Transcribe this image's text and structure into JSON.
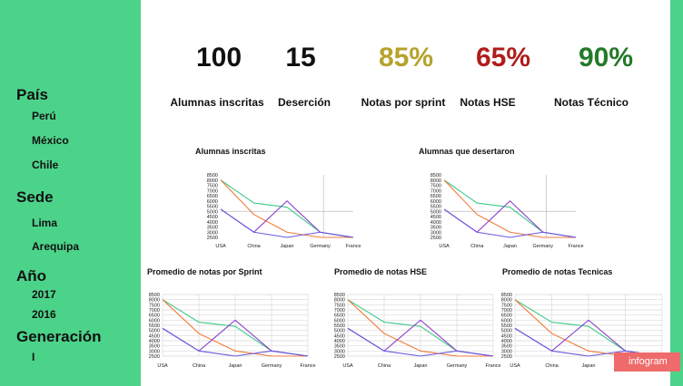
{
  "sidebar": {
    "sections": [
      {
        "title": "País",
        "items": [
          "Perú",
          "México",
          "Chile"
        ]
      },
      {
        "title": "Sede",
        "items": [
          "Lima",
          "Arequipa"
        ]
      },
      {
        "title": "Año",
        "items": [
          "2017",
          "2016"
        ]
      },
      {
        "title": "Generación",
        "items": [
          "I"
        ]
      }
    ]
  },
  "kpis": [
    {
      "value": "100",
      "label": "Alumnas inscritas",
      "color": "#111111"
    },
    {
      "value": "15",
      "label": "Deserción",
      "color": "#111111"
    },
    {
      "value": "85%",
      "label": "Notas por sprint",
      "color": "#b5a22a"
    },
    {
      "value": "65%",
      "label": "Notas HSE",
      "color": "#b01c1c"
    },
    {
      "value": "90%",
      "label": "Notas Técnico",
      "color": "#237a2a"
    }
  ],
  "badge": "infogram",
  "chart_data": [
    {
      "type": "line",
      "title": "Alumnas inscritas",
      "categories": [
        "USA",
        "China",
        "Japan",
        "Germany",
        "France"
      ],
      "yticks": [
        2500,
        3000,
        3500,
        4000,
        4500,
        5000,
        5500,
        6000,
        6500,
        7000,
        7500,
        8000,
        8500
      ],
      "ylim": [
        2500,
        8500
      ],
      "series": [
        {
          "values": [
            8000,
            5800,
            5400,
            3000,
            2500
          ],
          "color": "#3ec98a"
        },
        {
          "values": [
            8000,
            4700,
            3000,
            2500,
            2500
          ],
          "color": "#f07b39"
        },
        {
          "values": [
            5200,
            3000,
            6000,
            3000,
            2500
          ],
          "color": "#8b3fc8"
        },
        {
          "values": [
            5200,
            3000,
            2500,
            3000,
            2500
          ],
          "color": "#6a5ae0"
        }
      ]
    },
    {
      "type": "line",
      "title": "Alumnas que desertaron",
      "categories": [
        "USA",
        "China",
        "Japan",
        "Germany",
        "France"
      ],
      "yticks": [
        2500,
        3000,
        3500,
        4000,
        4500,
        5000,
        5500,
        6000,
        6500,
        7000,
        7500,
        8000,
        8500
      ],
      "ylim": [
        2500,
        8500
      ],
      "series": [
        {
          "values": [
            8000,
            5800,
            5400,
            3000,
            2500
          ],
          "color": "#3ec98a"
        },
        {
          "values": [
            8000,
            4700,
            3000,
            2500,
            2500
          ],
          "color": "#f07b39"
        },
        {
          "values": [
            5200,
            3000,
            6000,
            3000,
            2500
          ],
          "color": "#8b3fc8"
        },
        {
          "values": [
            5200,
            3000,
            2500,
            3000,
            2500
          ],
          "color": "#6a5ae0"
        }
      ]
    },
    {
      "type": "line",
      "title": "Promedio de notas por Sprint",
      "categories": [
        "USA",
        "China",
        "Japan",
        "Germany",
        "France"
      ],
      "yticks": [
        2500,
        3000,
        3500,
        4000,
        4500,
        5000,
        5500,
        6000,
        6500,
        7000,
        7500,
        8000,
        8500
      ],
      "ylim": [
        2500,
        8500
      ],
      "series": [
        {
          "values": [
            8000,
            5800,
            5400,
            3000,
            2500
          ],
          "color": "#3ec98a"
        },
        {
          "values": [
            8000,
            4700,
            3000,
            2500,
            2500
          ],
          "color": "#f07b39"
        },
        {
          "values": [
            5200,
            3000,
            6000,
            3000,
            2500
          ],
          "color": "#8b3fc8"
        },
        {
          "values": [
            5200,
            3000,
            2500,
            3000,
            2500
          ],
          "color": "#6a5ae0"
        }
      ]
    },
    {
      "type": "line",
      "title": "Promedio de notas HSE",
      "categories": [
        "USA",
        "China",
        "Japan",
        "Germany",
        "France"
      ],
      "yticks": [
        2500,
        3000,
        3500,
        4000,
        4500,
        5000,
        5500,
        6000,
        6500,
        7000,
        7500,
        8000,
        8500
      ],
      "ylim": [
        2500,
        8500
      ],
      "series": [
        {
          "values": [
            8000,
            5800,
            5400,
            3000,
            2500
          ],
          "color": "#3ec98a"
        },
        {
          "values": [
            8000,
            4700,
            3000,
            2500,
            2500
          ],
          "color": "#f07b39"
        },
        {
          "values": [
            5200,
            3000,
            6000,
            3000,
            2500
          ],
          "color": "#8b3fc8"
        },
        {
          "values": [
            5200,
            3000,
            2500,
            3000,
            2500
          ],
          "color": "#6a5ae0"
        }
      ]
    },
    {
      "type": "line",
      "title": "Promedio de notas Tecnicas",
      "categories": [
        "USA",
        "China",
        "Japan",
        "Germany",
        "France"
      ],
      "yticks": [
        2500,
        3000,
        3500,
        4000,
        4500,
        5000,
        5500,
        6000,
        6500,
        7000,
        7500,
        8000,
        8500
      ],
      "ylim": [
        2500,
        8500
      ],
      "series": [
        {
          "values": [
            8000,
            5800,
            5400,
            3000,
            2500
          ],
          "color": "#3ec98a"
        },
        {
          "values": [
            8000,
            4700,
            3000,
            2500,
            2500
          ],
          "color": "#f07b39"
        },
        {
          "values": [
            5200,
            3000,
            6000,
            3000,
            2500
          ],
          "color": "#8b3fc8"
        },
        {
          "values": [
            5200,
            3000,
            2500,
            3000,
            2500
          ],
          "color": "#6a5ae0"
        }
      ]
    }
  ]
}
